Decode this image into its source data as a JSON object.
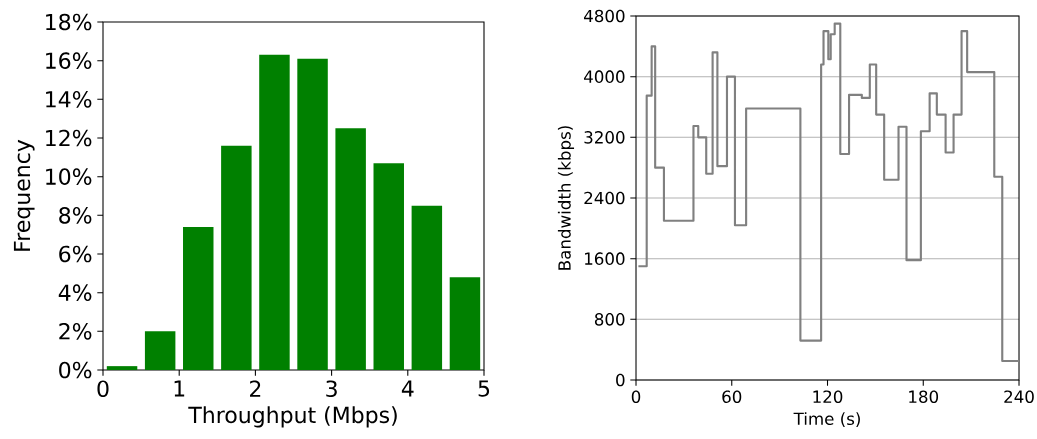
{
  "chart_data": [
    {
      "type": "histogram",
      "xlabel": "Throughput (Mbps)",
      "ylabel": "Frequency",
      "color": "#008000",
      "bins": [
        0,
        0.5,
        1,
        1.5,
        2,
        2.5,
        3,
        3.5,
        4,
        4.5,
        5
      ],
      "values": [
        0.2,
        2.0,
        7.4,
        11.6,
        16.3,
        16.1,
        12.5,
        10.7,
        8.5,
        4.8
      ],
      "xlim": [
        0,
        5
      ],
      "xticks": [
        0,
        1,
        2,
        3,
        4,
        5
      ],
      "ylim": [
        0,
        18
      ],
      "yticks": [
        {
          "value": 0,
          "label": "0%"
        },
        {
          "value": 2,
          "label": "2%"
        },
        {
          "value": 4,
          "label": "4%"
        },
        {
          "value": 6,
          "label": "6%"
        },
        {
          "value": 8,
          "label": "8%"
        },
        {
          "value": 10,
          "label": "10%"
        },
        {
          "value": 12,
          "label": "12%"
        },
        {
          "value": 14,
          "label": "14%"
        },
        {
          "value": 16,
          "label": "16%"
        },
        {
          "value": 18,
          "label": "18%"
        }
      ]
    },
    {
      "type": "step",
      "xlabel": "Time (s)",
      "ylabel": "Bandwidth (kbps)",
      "color": "#808080",
      "grid": "y",
      "x": [
        1.5,
        6.7,
        9.8,
        12,
        17.5,
        36,
        39,
        44,
        48,
        51,
        57,
        62,
        69,
        103,
        116,
        117.5,
        120.5,
        122,
        124.5,
        128,
        133.5,
        141.5,
        146.5,
        150.5,
        155.5,
        164.5,
        169.5,
        178.5,
        184,
        188.5,
        194,
        199,
        204,
        207.5,
        224.5,
        229.5,
        240
      ],
      "values": [
        1500,
        3750,
        4400,
        2800,
        2100,
        3350,
        3200,
        2720,
        4320,
        2820,
        4000,
        2040,
        3580,
        520,
        4160,
        4600,
        4230,
        4560,
        4700,
        2980,
        3760,
        3720,
        4160,
        3500,
        2640,
        3340,
        1580,
        3280,
        3780,
        3500,
        3000,
        3500,
        4600,
        4060,
        2680,
        250,
        250
      ],
      "xlim": [
        0,
        240
      ],
      "xticks": [
        0,
        60,
        120,
        180,
        240
      ],
      "ylim": [
        0,
        4800
      ],
      "yticks": [
        0,
        800,
        1600,
        2400,
        3200,
        4000,
        4800
      ]
    }
  ]
}
